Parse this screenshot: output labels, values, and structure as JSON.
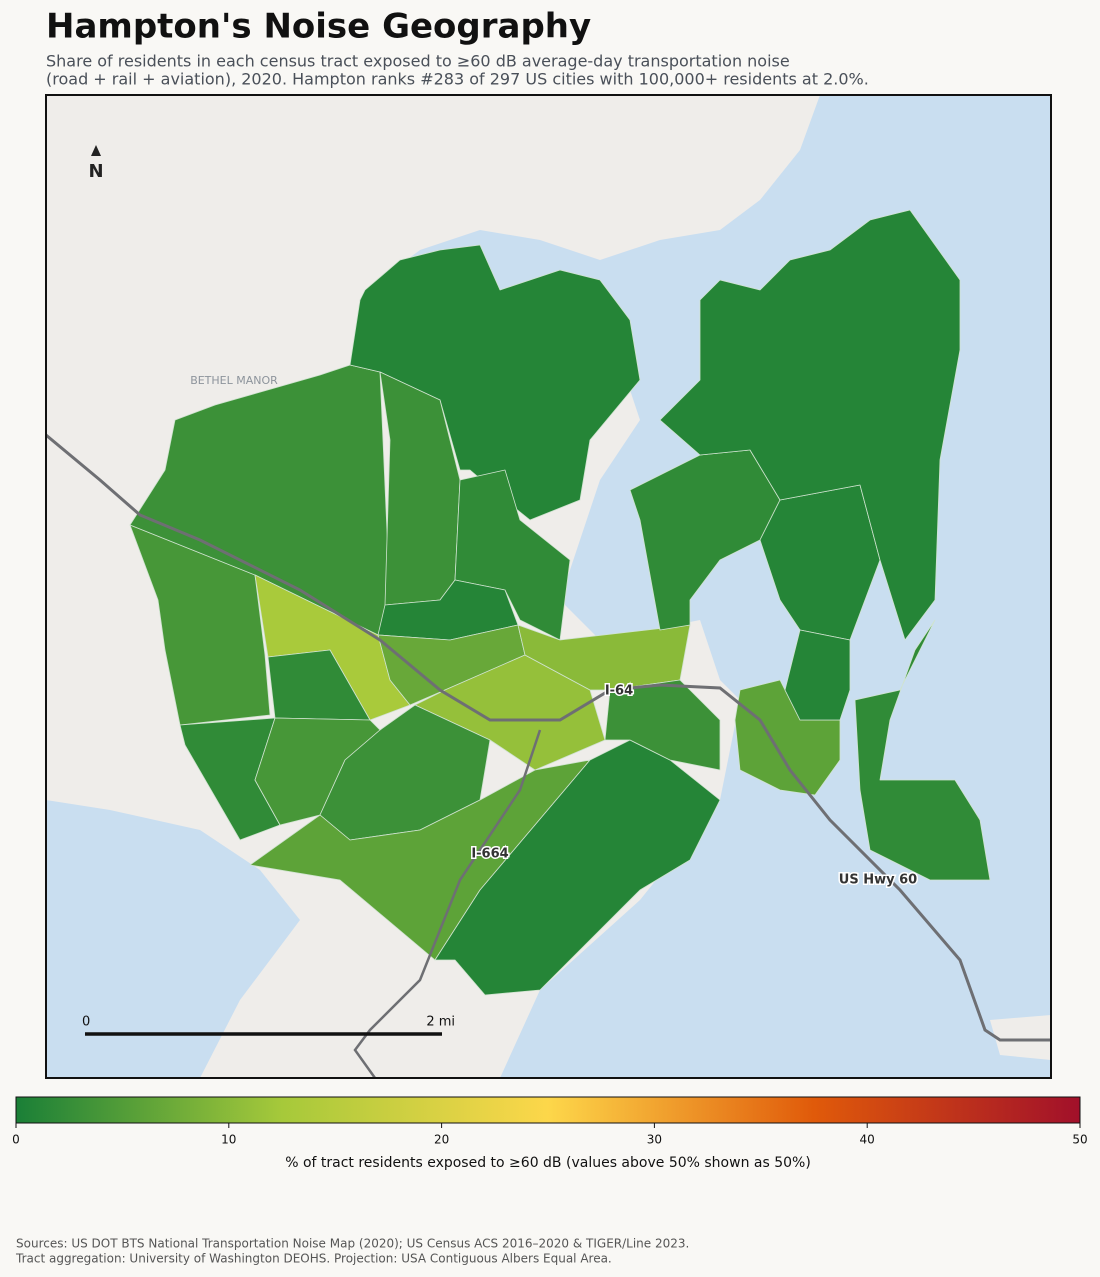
{
  "chart_data": {
    "type": "choropleth",
    "title": "Hampton's Noise Geography",
    "subtitle": [
      "Share of residents in each census tract exposed to ≥60 dB average-day transportation noise",
      "(road + rail + aviation), 2020. Hampton ranks #283 of 297 US cities with 100,000+ residents at 2.0%."
    ],
    "north": "N",
    "place_label": "BETHEL MANOR",
    "road_labels": [
      "I-64",
      "I-664",
      "US Hwy 60"
    ],
    "scale_labels": [
      "0",
      "2 mi"
    ],
    "values": [
      4,
      3,
      1,
      3,
      2,
      1,
      13,
      2,
      7,
      11,
      10,
      2,
      4,
      3,
      6,
      1,
      3,
      2,
      1,
      1,
      6,
      1,
      2
    ],
    "colorbar": {
      "lim": [
        0,
        50
      ],
      "ticks": [
        0,
        10,
        20,
        30,
        40,
        50
      ],
      "colors": [
        "#1a7f37",
        "#a6c93a",
        "#fdd74a",
        "#e05a0a",
        "#a1102a"
      ],
      "label": "% of tract residents exposed to ≥60 dB (values above 50% shown as 50%)"
    },
    "sources": [
      "Sources: US DOT BTS National Transportation Noise Map (2020); US Census ACS 2016–2020 & TIGER/Line 2023.",
      "Tract aggregation: University of Washington DEOHS. Projection: USA Contiguous Albers Equal Area."
    ]
  }
}
